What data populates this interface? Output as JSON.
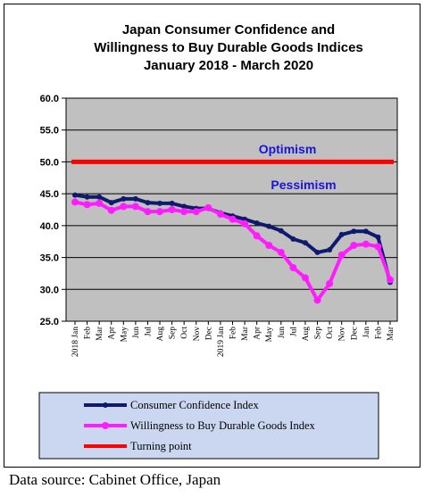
{
  "chart_data": {
    "type": "line",
    "title_lines": [
      "Japan Consumer Confidence and",
      "Willingness to Buy Durable Goods Indices",
      "January 2018 - March 2020"
    ],
    "x": [
      "2018 Jan",
      "Feb",
      "Mar",
      "Apr",
      "May",
      "Jun",
      "Jul",
      "Aug",
      "Sep",
      "Oct",
      "Nov",
      "Dec",
      "2019 Jan",
      "Feb",
      "Mar",
      "Apr",
      "May",
      "Jun",
      "Jul",
      "Aug",
      "Sep",
      "Oct",
      "Nov",
      "Dec",
      "Jan",
      "Feb",
      "Mar"
    ],
    "y_ticks": [
      "25.0",
      "30.0",
      "35.0",
      "40.0",
      "45.0",
      "50.0",
      "55.0",
      "60.0"
    ],
    "ylim": [
      25,
      60
    ],
    "grid": true,
    "series": [
      {
        "name": "Consumer Confidence Index",
        "color": "#0f1a6e",
        "values": [
          44.8,
          44.5,
          44.5,
          43.6,
          44.2,
          44.2,
          43.6,
          43.5,
          43.5,
          43.0,
          42.7,
          42.7,
          42.0,
          41.5,
          41.0,
          40.4,
          39.9,
          39.2,
          37.9,
          37.3,
          35.8,
          36.2,
          38.6,
          39.1,
          39.1,
          38.2,
          31.1
        ]
      },
      {
        "name": "Willingness to Buy Durable Goods Index",
        "color": "#ff1cff",
        "values": [
          43.7,
          43.3,
          43.5,
          42.4,
          43.0,
          43.0,
          42.2,
          42.2,
          42.5,
          42.2,
          42.2,
          42.8,
          41.8,
          41.0,
          40.3,
          38.4,
          36.9,
          35.8,
          33.4,
          31.8,
          28.3,
          30.9,
          35.4,
          36.9,
          37.1,
          36.7,
          31.5
        ]
      },
      {
        "name": "Turning point",
        "color": "#ff0000",
        "values": [
          50,
          50,
          50,
          50,
          50,
          50,
          50,
          50,
          50,
          50,
          50,
          50,
          50,
          50,
          50,
          50,
          50,
          50,
          50,
          50,
          50,
          50,
          50,
          50,
          50,
          50,
          50
        ]
      }
    ],
    "annotations": {
      "optimism": "Optimism",
      "pessimism": "Pessimism"
    },
    "colors": {
      "plot_background": "#c0c0c0",
      "legend_background": "#cbd7f0",
      "annotation_text": "#1a14d6"
    },
    "legend_position": "bottom"
  },
  "source": "Data source: Cabinet Office, Japan"
}
